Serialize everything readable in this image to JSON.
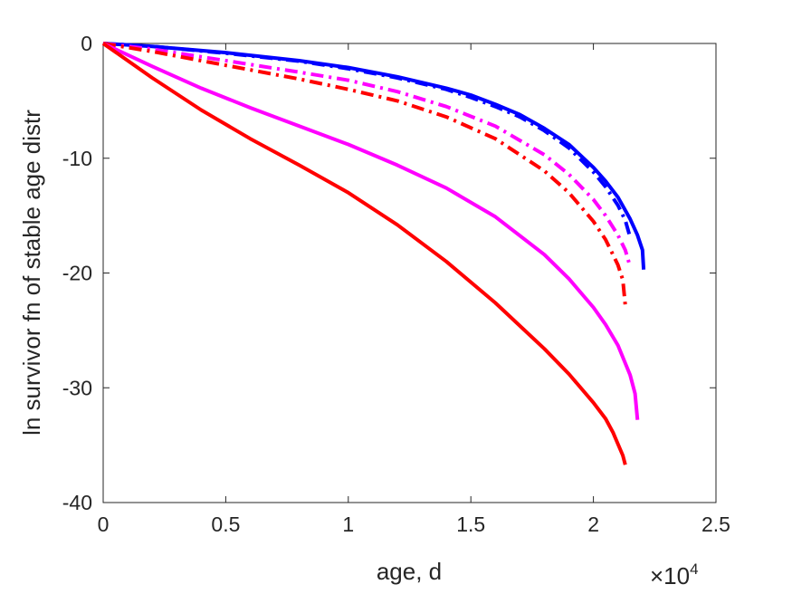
{
  "chart_data": {
    "type": "line",
    "title": "",
    "xlabel": "age, d",
    "ylabel": "ln survivor fn of stable age distr",
    "x_multiplier": "×10",
    "x_multiplier_exp": "4",
    "xlim": [
      0,
      25000
    ],
    "ylim": [
      -40,
      0
    ],
    "xticks": [
      0,
      5000,
      10000,
      15000,
      20000,
      25000
    ],
    "xtick_labels": [
      "0",
      "0.5",
      "1",
      "1.5",
      "2",
      "2.5"
    ],
    "yticks": [
      0,
      -10,
      -20,
      -30,
      -40
    ],
    "ytick_labels": [
      "0",
      "-10",
      "-20",
      "-30",
      "-40"
    ],
    "grid": false,
    "legend": "none",
    "series": [
      {
        "color": "#0000ff",
        "style": "solid",
        "x": [
          0,
          2000,
          5000,
          8000,
          10000,
          12000,
          14000,
          15000,
          16000,
          17000,
          18000,
          19000,
          20000,
          20500,
          21000,
          21500,
          21800,
          22000,
          22050
        ],
        "y": [
          0,
          -0.25,
          -0.8,
          -1.5,
          -2.1,
          -2.9,
          -3.9,
          -4.5,
          -5.3,
          -6.2,
          -7.4,
          -8.8,
          -10.8,
          -12.0,
          -13.4,
          -15.3,
          -16.7,
          -18.0,
          -19.7
        ]
      },
      {
        "color": "#0000ff",
        "style": "dashdot",
        "x": [
          0,
          2000,
          5000,
          8000,
          10000,
          12000,
          14000,
          15000,
          16000,
          17000,
          18000,
          19000,
          20000,
          20500,
          21000,
          21300,
          21500
        ],
        "y": [
          0,
          -0.25,
          -0.85,
          -1.55,
          -2.2,
          -3.0,
          -4.0,
          -4.7,
          -5.5,
          -6.4,
          -7.6,
          -9.1,
          -11.2,
          -12.5,
          -14.1,
          -15.4,
          -16.9
        ]
      },
      {
        "color": "#ff00ff",
        "style": "dashdot",
        "x": [
          0,
          2000,
          5000,
          8000,
          10000,
          12000,
          14000,
          16000,
          18000,
          19000,
          20000,
          20500,
          21000,
          21300,
          21450
        ],
        "y": [
          0,
          -0.5,
          -1.5,
          -2.5,
          -3.2,
          -4.2,
          -5.5,
          -7.2,
          -9.7,
          -11.4,
          -13.6,
          -15.0,
          -16.7,
          -18.0,
          -19.1
        ]
      },
      {
        "color": "#ff0000",
        "style": "dashdot",
        "x": [
          0,
          2000,
          5000,
          8000,
          10000,
          12000,
          14000,
          16000,
          18000,
          19000,
          20000,
          20500,
          21000,
          21200,
          21300
        ],
        "y": [
          0,
          -0.7,
          -1.9,
          -3.1,
          -4.0,
          -5.0,
          -6.4,
          -8.3,
          -11.1,
          -13.0,
          -15.5,
          -17.1,
          -19.3,
          -20.6,
          -22.8
        ]
      },
      {
        "color": "#ff00ff",
        "style": "solid",
        "x": [
          0,
          2000,
          4000,
          6000,
          8000,
          10000,
          12000,
          14000,
          16000,
          18000,
          19000,
          20000,
          20500,
          21000,
          21500,
          21700,
          21800
        ],
        "y": [
          0,
          -2.0,
          -3.9,
          -5.6,
          -7.2,
          -8.8,
          -10.6,
          -12.6,
          -15.1,
          -18.4,
          -20.5,
          -23.0,
          -24.5,
          -26.3,
          -28.9,
          -30.5,
          -32.8
        ]
      },
      {
        "color": "#ff0000",
        "style": "solid",
        "x": [
          0,
          2000,
          4000,
          6000,
          8000,
          10000,
          12000,
          14000,
          16000,
          18000,
          19000,
          20000,
          20500,
          20800,
          21000,
          21200,
          21300
        ],
        "y": [
          0,
          -3.0,
          -5.8,
          -8.3,
          -10.6,
          -13.0,
          -15.8,
          -19.0,
          -22.6,
          -26.6,
          -28.8,
          -31.3,
          -32.7,
          -33.9,
          -34.9,
          -35.9,
          -36.7
        ]
      }
    ]
  }
}
